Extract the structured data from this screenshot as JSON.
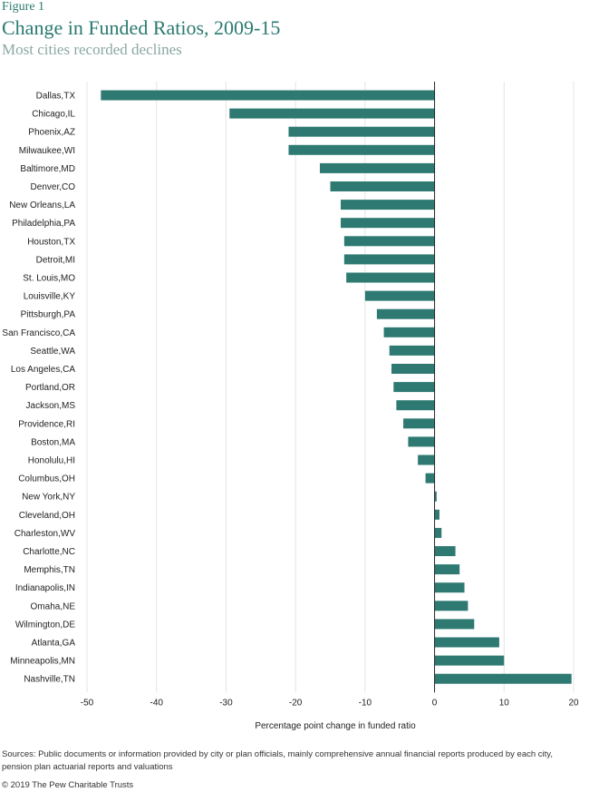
{
  "figure_label": "Figure 1",
  "title": "Change in Funded Ratios, 2009-15",
  "subtitle": "Most cities recorded declines",
  "source": "Sources: Public documents or information provided by city or plan officials, mainly comprehensive annual financial reports produced by each city, pension plan actuarial reports and valuations",
  "copyright": "© 2019 The Pew Charitable Trusts",
  "colors": {
    "bar": "#2e7a72",
    "title": "#2a7a70",
    "subtitle": "#8aa8a3",
    "grid": "#e4e4e4"
  },
  "chart_data": {
    "type": "bar",
    "orientation": "horizontal",
    "xlabel": "Percentage point change in funded ratio",
    "xlim": [
      -50,
      20
    ],
    "xticks": [
      -50,
      -40,
      -30,
      -20,
      -10,
      0,
      10,
      20
    ],
    "grid": true,
    "categories": [
      "Dallas,TX",
      "Chicago,IL",
      "Phoenix,AZ",
      "Milwaukee,WI",
      "Baltimore,MD",
      "Denver,CO",
      "New Orleans,LA",
      "Philadelphia,PA",
      "Houston,TX",
      "Detroit,MI",
      "St. Louis,MO",
      "Louisville,KY",
      "Pittsburgh,PA",
      "San Francisco,CA",
      "Seattle,WA",
      "Los Angeles,CA",
      "Portland,OR",
      "Jackson,MS",
      "Providence,RI",
      "Boston,MA",
      "Honolulu,HI",
      "Columbus,OH",
      "New York,NY",
      "Cleveland,OH",
      "Charleston,WV",
      "Charlotte,NC",
      "Memphis,TN",
      "Indianapolis,IN",
      "Omaha,NE",
      "Wilmington,DE",
      "Atlanta,GA",
      "Minneapolis,MN",
      "Nashville,TN"
    ],
    "values": [
      -48,
      -29.5,
      -21,
      -21,
      -16.5,
      -15,
      -13.5,
      -13.5,
      -13,
      -13,
      -12.7,
      -10,
      -8.3,
      -7.3,
      -6.5,
      -6.2,
      -5.9,
      -5.5,
      -4.5,
      -3.8,
      -2.4,
      -1.3,
      0.3,
      0.7,
      1,
      3,
      3.6,
      4.3,
      4.8,
      5.7,
      9.3,
      10,
      19.7
    ]
  }
}
